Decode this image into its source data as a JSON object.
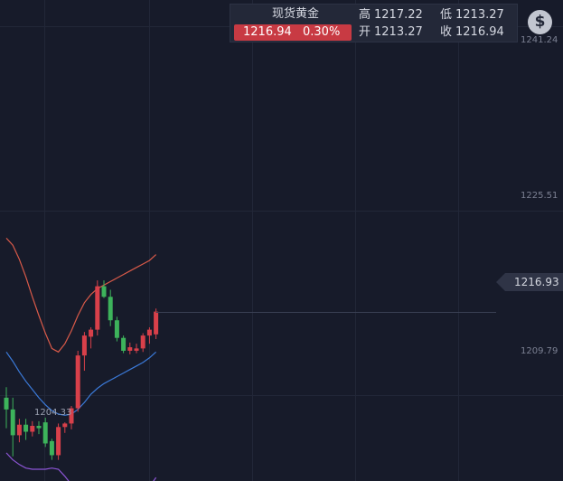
{
  "quote": {
    "instrument": "现货黄金",
    "last_price": "1216.94",
    "change_pct": "0.30%",
    "high_label": "高",
    "high": "1217.22",
    "low_label": "低",
    "low": "1213.27",
    "open_label": "开",
    "open": "1213.27",
    "close_label": "收",
    "close": "1216.94"
  },
  "currency_button": {
    "symbol": "$"
  },
  "y_axis": {
    "labels": [
      "1241.24",
      "1225.51",
      "1209.79"
    ]
  },
  "current_price_tag": "1216.93",
  "low_marker": "1204.33",
  "colors": {
    "background": "#171b2a",
    "up": "#d8404a",
    "down": "#3db35b",
    "upper_band": "#d95a49",
    "middle_band": "#3b7ad9",
    "lower_band": "#8d55d6",
    "badge": "#c83a43"
  },
  "chart_data": {
    "type": "candlestick",
    "indicator": "bollinger",
    "ylim": [
      1202.5,
      1243.5
    ],
    "candles": [
      {
        "o": 1209.6,
        "h": 1210.5,
        "l": 1207.0,
        "c": 1208.6
      },
      {
        "o": 1208.6,
        "h": 1209.6,
        "l": 1204.6,
        "c": 1206.4
      },
      {
        "o": 1206.4,
        "h": 1207.8,
        "l": 1205.8,
        "c": 1207.3
      },
      {
        "o": 1207.3,
        "h": 1207.8,
        "l": 1206.0,
        "c": 1206.7
      },
      {
        "o": 1206.7,
        "h": 1207.6,
        "l": 1206.3,
        "c": 1207.2
      },
      {
        "o": 1207.2,
        "h": 1207.6,
        "l": 1206.5,
        "c": 1207.0
      },
      {
        "o": 1207.5,
        "h": 1207.9,
        "l": 1205.4,
        "c": 1205.7
      },
      {
        "o": 1205.9,
        "h": 1206.1,
        "l": 1204.3,
        "c": 1204.7
      },
      {
        "o": 1204.7,
        "h": 1207.4,
        "l": 1204.3,
        "c": 1207.1
      },
      {
        "o": 1207.1,
        "h": 1207.5,
        "l": 1206.6,
        "c": 1207.4
      },
      {
        "o": 1207.4,
        "h": 1208.9,
        "l": 1206.9,
        "c": 1208.7
      },
      {
        "o": 1208.7,
        "h": 1213.6,
        "l": 1208.4,
        "c": 1213.2
      },
      {
        "o": 1213.2,
        "h": 1215.2,
        "l": 1211.9,
        "c": 1214.9
      },
      {
        "o": 1214.8,
        "h": 1215.6,
        "l": 1213.8,
        "c": 1215.4
      },
      {
        "o": 1215.4,
        "h": 1219.6,
        "l": 1214.9,
        "c": 1219.1
      },
      {
        "o": 1219.1,
        "h": 1219.6,
        "l": 1218.1,
        "c": 1218.2
      },
      {
        "o": 1218.2,
        "h": 1218.8,
        "l": 1215.7,
        "c": 1216.2
      },
      {
        "o": 1216.2,
        "h": 1216.5,
        "l": 1214.4,
        "c": 1214.7
      },
      {
        "o": 1214.7,
        "h": 1214.9,
        "l": 1213.4,
        "c": 1213.6
      },
      {
        "o": 1213.6,
        "h": 1214.3,
        "l": 1213.3,
        "c": 1213.9
      },
      {
        "o": 1213.6,
        "h": 1214.2,
        "l": 1213.4,
        "c": 1213.8
      },
      {
        "o": 1213.8,
        "h": 1215.1,
        "l": 1213.5,
        "c": 1214.9
      },
      {
        "o": 1214.9,
        "h": 1215.6,
        "l": 1214.2,
        "c": 1215.4
      },
      {
        "o": 1215.0,
        "h": 1217.2,
        "l": 1214.6,
        "c": 1216.94
      }
    ],
    "upper_band": [
      1223.2,
      1222.6,
      1221.4,
      1219.9,
      1218.2,
      1216.6,
      1215.1,
      1213.8,
      1213.5,
      1214.2,
      1215.3,
      1216.6,
      1217.7,
      1218.4,
      1218.9,
      1219.2,
      1219.5,
      1219.8,
      1220.1,
      1220.4,
      1220.7,
      1221.0,
      1221.3,
      1221.8
    ],
    "middle_band": [
      1213.5,
      1212.7,
      1211.8,
      1211.0,
      1210.3,
      1209.6,
      1209.0,
      1208.5,
      1208.2,
      1208.1,
      1208.2,
      1208.6,
      1209.2,
      1209.9,
      1210.4,
      1210.8,
      1211.1,
      1211.4,
      1211.7,
      1212.0,
      1212.3,
      1212.6,
      1213.0,
      1213.5
    ],
    "lower_band": [
      1204.9,
      1204.3,
      1203.9,
      1203.6,
      1203.5,
      1203.5,
      1203.5,
      1203.6,
      1203.5,
      1202.9,
      1202.2,
      1201.7,
      1201.2,
      1200.8,
      1200.7,
      1200.8,
      1200.9,
      1201.0,
      1201.2,
      1201.3,
      1201.5,
      1201.7,
      1202.0,
      1202.8
    ]
  }
}
